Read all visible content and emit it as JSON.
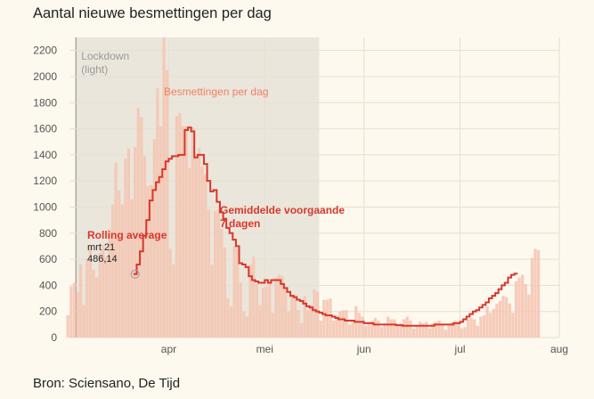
{
  "title": "Aantal nieuwe besmettingen per dag",
  "source": "Bron: Sciensano, De Tijd",
  "colors": {
    "background": "#fdf9ef",
    "bars": "#f5c4b2",
    "line": "#d8382b",
    "lockdown_shade": "#ebe6dc",
    "grid": "#e6dfd2",
    "bar_label": "#f08060",
    "line_label": "#d8382b"
  },
  "chart_data": {
    "type": "bar",
    "title": "Aantal nieuwe besmettingen per dag",
    "xlabel": "",
    "ylabel": "",
    "ylim": [
      0,
      2300
    ],
    "yticks": [
      0,
      200,
      400,
      600,
      800,
      1000,
      1200,
      1400,
      1600,
      1800,
      2000,
      2200
    ],
    "x_start": "2020-03-01",
    "x_end": "2020-08-01",
    "xticks": [
      {
        "date": "2020-04-01",
        "label": "apr"
      },
      {
        "date": "2020-05-01",
        "label": "mei"
      },
      {
        "date": "2020-06-01",
        "label": "jun"
      },
      {
        "date": "2020-07-01",
        "label": "jul"
      },
      {
        "date": "2020-08-01",
        "label": "aug"
      }
    ],
    "grid": true,
    "shaded_region": {
      "start": "2020-03-03",
      "end": "2020-05-18",
      "label_line1": "Lockdown",
      "label_line2": "(light)"
    },
    "series": [
      {
        "name": "Besmettingen per dag",
        "type": "bar",
        "start_date": "2020-02-29",
        "values": [
          170,
          390,
          420,
          350,
          560,
          250,
          600,
          700,
          520,
          460,
          650,
          710,
          620,
          830,
          1020,
          1340,
          1130,
          1020,
          1370,
          1450,
          1060,
          1460,
          1760,
          1690,
          1390,
          1160,
          1170,
          1520,
          1910,
          1620,
          2300,
          2050,
          680,
          560,
          1700,
          1720,
          1620,
          1620,
          1300,
          1610,
          1390,
          1450,
          1310,
          1250,
          980,
          560,
          970,
          980,
          830,
          690,
          300,
          240,
          700,
          680,
          420,
          200,
          160,
          560,
          620,
          410,
          250,
          380,
          390,
          430,
          190,
          460,
          480,
          470,
          380,
          200,
          320,
          330,
          210,
          110,
          320,
          210,
          250,
          370,
          350,
          130,
          290,
          290,
          300,
          130,
          170,
          200,
          210,
          210,
          100,
          120,
          240,
          190,
          160,
          90,
          120,
          130,
          150,
          130,
          80,
          110,
          160,
          140,
          140,
          100,
          110,
          140,
          160,
          130,
          70,
          90,
          120,
          110,
          120,
          70,
          110,
          120,
          130,
          100,
          60,
          100,
          120,
          130,
          120,
          70,
          80,
          140,
          150,
          140,
          90,
          160,
          170,
          240,
          190,
          220,
          260,
          280,
          320,
          310,
          260,
          190,
          430,
          460,
          480,
          410,
          330,
          610,
          680,
          670
        ]
      },
      {
        "name": "Gemiddelde voorgaande 7 dagen",
        "type": "line",
        "start_date": "2020-03-21",
        "values": [
          486.14,
          560,
          660,
          780,
          900,
          1050,
          1130,
          1190,
          1230,
          1290,
          1350,
          1370,
          1390,
          1390,
          1400,
          1400,
          1590,
          1610,
          1580,
          1380,
          1400,
          1400,
          1330,
          1200,
          1120,
          1130,
          1040,
          960,
          910,
          840,
          800,
          750,
          700,
          570,
          560,
          540,
          470,
          440,
          430,
          420,
          420,
          440,
          420,
          440,
          440,
          440,
          410,
          380,
          350,
          320,
          310,
          290,
          280,
          260,
          240,
          230,
          210,
          200,
          190,
          180,
          170,
          170,
          160,
          150,
          140,
          140,
          130,
          130,
          130,
          120,
          120,
          120,
          110,
          110,
          110,
          100,
          100,
          100,
          100,
          100,
          100,
          100,
          95,
          95,
          90,
          90,
          90,
          90,
          90,
          90,
          90,
          90,
          90,
          90,
          100,
          100,
          100,
          100,
          100,
          100,
          110,
          110,
          120,
          140,
          160,
          180,
          200,
          210,
          230,
          250,
          270,
          300,
          320,
          340,
          370,
          400,
          420,
          460,
          480,
          490
        ]
      }
    ],
    "annotations": {
      "bar_label": "Besmettingen per dag",
      "line_label_line1": "Gemiddelde voorgaande",
      "line_label_line2": "7 dagen",
      "rolling_title": "Rolling average",
      "rolling_date": "mrt 21",
      "rolling_value": "486,14"
    }
  }
}
